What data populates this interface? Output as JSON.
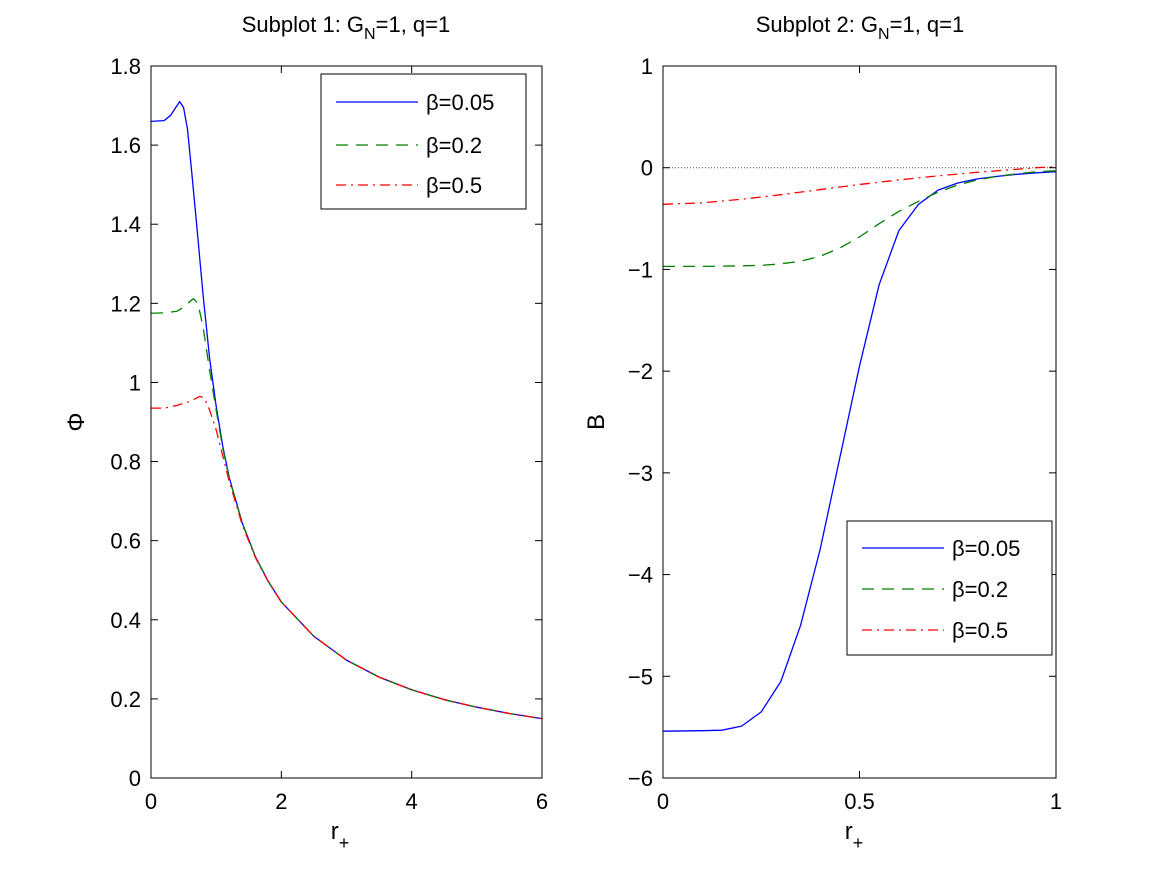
{
  "chart_data": [
    {
      "type": "line",
      "title": {
        "main": "Subplot 1: G",
        "sub": "N",
        "rest": "=1, q=1"
      },
      "xlabel": {
        "main": "r",
        "sub": "+"
      },
      "ylabel": "Φ",
      "xlim": [
        0,
        6
      ],
      "ylim": [
        0,
        1.8
      ],
      "xticks": [
        0,
        2,
        4,
        6
      ],
      "xtick_labels": [
        "0",
        "2",
        "4",
        "6"
      ],
      "yticks": [
        0,
        0.2,
        0.4,
        0.6,
        0.8,
        1,
        1.2,
        1.4,
        1.6,
        1.8
      ],
      "ytick_labels": [
        "0",
        "0.2",
        "0.4",
        "0.6",
        "0.8",
        "1",
        "1.2",
        "1.4",
        "1.6",
        "1.8"
      ],
      "legend_position": "top-right",
      "reference_line": {
        "y": 0,
        "color": "#555555"
      },
      "series": [
        {
          "name": "β=0.05",
          "color": "#0000ff",
          "dash": "solid",
          "x": [
            0,
            0.2,
            0.3,
            0.38,
            0.44,
            0.5,
            0.56,
            0.62,
            0.7,
            0.8,
            0.9,
            1.0,
            1.1,
            1.2,
            1.4,
            1.6,
            1.8,
            2.0,
            2.5,
            3.0,
            3.5,
            4.0,
            4.5,
            5.0,
            5.5,
            6.0
          ],
          "y": [
            1.66,
            1.662,
            1.675,
            1.695,
            1.71,
            1.695,
            1.64,
            1.54,
            1.4,
            1.22,
            1.06,
            0.94,
            0.84,
            0.76,
            0.645,
            0.56,
            0.497,
            0.445,
            0.358,
            0.298,
            0.255,
            0.223,
            0.198,
            0.179,
            0.163,
            0.15
          ]
        },
        {
          "name": "β=0.2",
          "color": "#008000",
          "dash": "dashed",
          "x": [
            0,
            0.2,
            0.4,
            0.5,
            0.6,
            0.65,
            0.72,
            0.8,
            0.9,
            1.0,
            1.1,
            1.2,
            1.4,
            1.6,
            1.8,
            2.0,
            2.5,
            3.0,
            3.5,
            4.0,
            4.5,
            5.0,
            5.5,
            6.0
          ],
          "y": [
            1.175,
            1.176,
            1.18,
            1.19,
            1.205,
            1.212,
            1.2,
            1.14,
            1.03,
            0.93,
            0.835,
            0.758,
            0.645,
            0.56,
            0.497,
            0.445,
            0.358,
            0.298,
            0.255,
            0.223,
            0.198,
            0.179,
            0.163,
            0.15
          ]
        },
        {
          "name": "β=0.5",
          "color": "#ff0000",
          "dash": "dashdot",
          "x": [
            0,
            0.2,
            0.4,
            0.6,
            0.75,
            0.82,
            0.9,
            1.0,
            1.1,
            1.2,
            1.4,
            1.6,
            1.8,
            2.0,
            2.5,
            3.0,
            3.5,
            4.0,
            4.5,
            5.0,
            5.5,
            6.0
          ],
          "y": [
            0.935,
            0.935,
            0.942,
            0.952,
            0.965,
            0.96,
            0.93,
            0.88,
            0.815,
            0.75,
            0.64,
            0.558,
            0.496,
            0.445,
            0.358,
            0.298,
            0.255,
            0.223,
            0.198,
            0.179,
            0.163,
            0.15
          ]
        }
      ]
    },
    {
      "type": "line",
      "title": {
        "main": "Subplot 2: G",
        "sub": "N",
        "rest": "=1, q=1"
      },
      "xlabel": {
        "main": "r",
        "sub": "+"
      },
      "ylabel": "B",
      "xlim": [
        0,
        1
      ],
      "ylim": [
        -6,
        1
      ],
      "xticks": [
        0,
        0.5,
        1
      ],
      "xtick_labels": [
        "0",
        "0.5",
        "1"
      ],
      "yticks": [
        -6,
        -5,
        -4,
        -3,
        -2,
        -1,
        0,
        1
      ],
      "ytick_labels": [
        "−6",
        "−5",
        "−4",
        "−3",
        "−2",
        "−1",
        "0",
        "1"
      ],
      "legend_position": "bottom-right",
      "reference_line": {
        "y": 0,
        "color": "#555555"
      },
      "series": [
        {
          "name": "β=0.05",
          "color": "#0000ff",
          "dash": "solid",
          "x": [
            0,
            0.1,
            0.15,
            0.2,
            0.25,
            0.3,
            0.35,
            0.4,
            0.45,
            0.5,
            0.55,
            0.6,
            0.65,
            0.7,
            0.75,
            0.8,
            0.85,
            0.9,
            0.95,
            1.0
          ],
          "y": [
            -5.54,
            -5.535,
            -5.53,
            -5.49,
            -5.35,
            -5.05,
            -4.5,
            -3.75,
            -2.85,
            -1.95,
            -1.15,
            -0.62,
            -0.36,
            -0.22,
            -0.15,
            -0.11,
            -0.085,
            -0.065,
            -0.05,
            -0.04
          ]
        },
        {
          "name": "β=0.2",
          "color": "#008000",
          "dash": "dashed",
          "x": [
            0,
            0.1,
            0.2,
            0.25,
            0.3,
            0.35,
            0.4,
            0.45,
            0.5,
            0.55,
            0.6,
            0.65,
            0.7,
            0.75,
            0.8,
            0.85,
            0.9,
            0.95,
            1.0
          ],
          "y": [
            -0.97,
            -0.97,
            -0.965,
            -0.96,
            -0.945,
            -0.92,
            -0.87,
            -0.79,
            -0.68,
            -0.55,
            -0.43,
            -0.33,
            -0.24,
            -0.17,
            -0.12,
            -0.085,
            -0.06,
            -0.04,
            -0.03
          ]
        },
        {
          "name": "β=0.5",
          "color": "#ff0000",
          "dash": "dashdot",
          "x": [
            0,
            0.1,
            0.2,
            0.3,
            0.4,
            0.5,
            0.6,
            0.7,
            0.8,
            0.9,
            0.95,
            1.0
          ],
          "y": [
            -0.36,
            -0.345,
            -0.31,
            -0.265,
            -0.215,
            -0.165,
            -0.12,
            -0.08,
            -0.045,
            -0.015,
            0.0,
            0.01
          ]
        }
      ]
    }
  ]
}
